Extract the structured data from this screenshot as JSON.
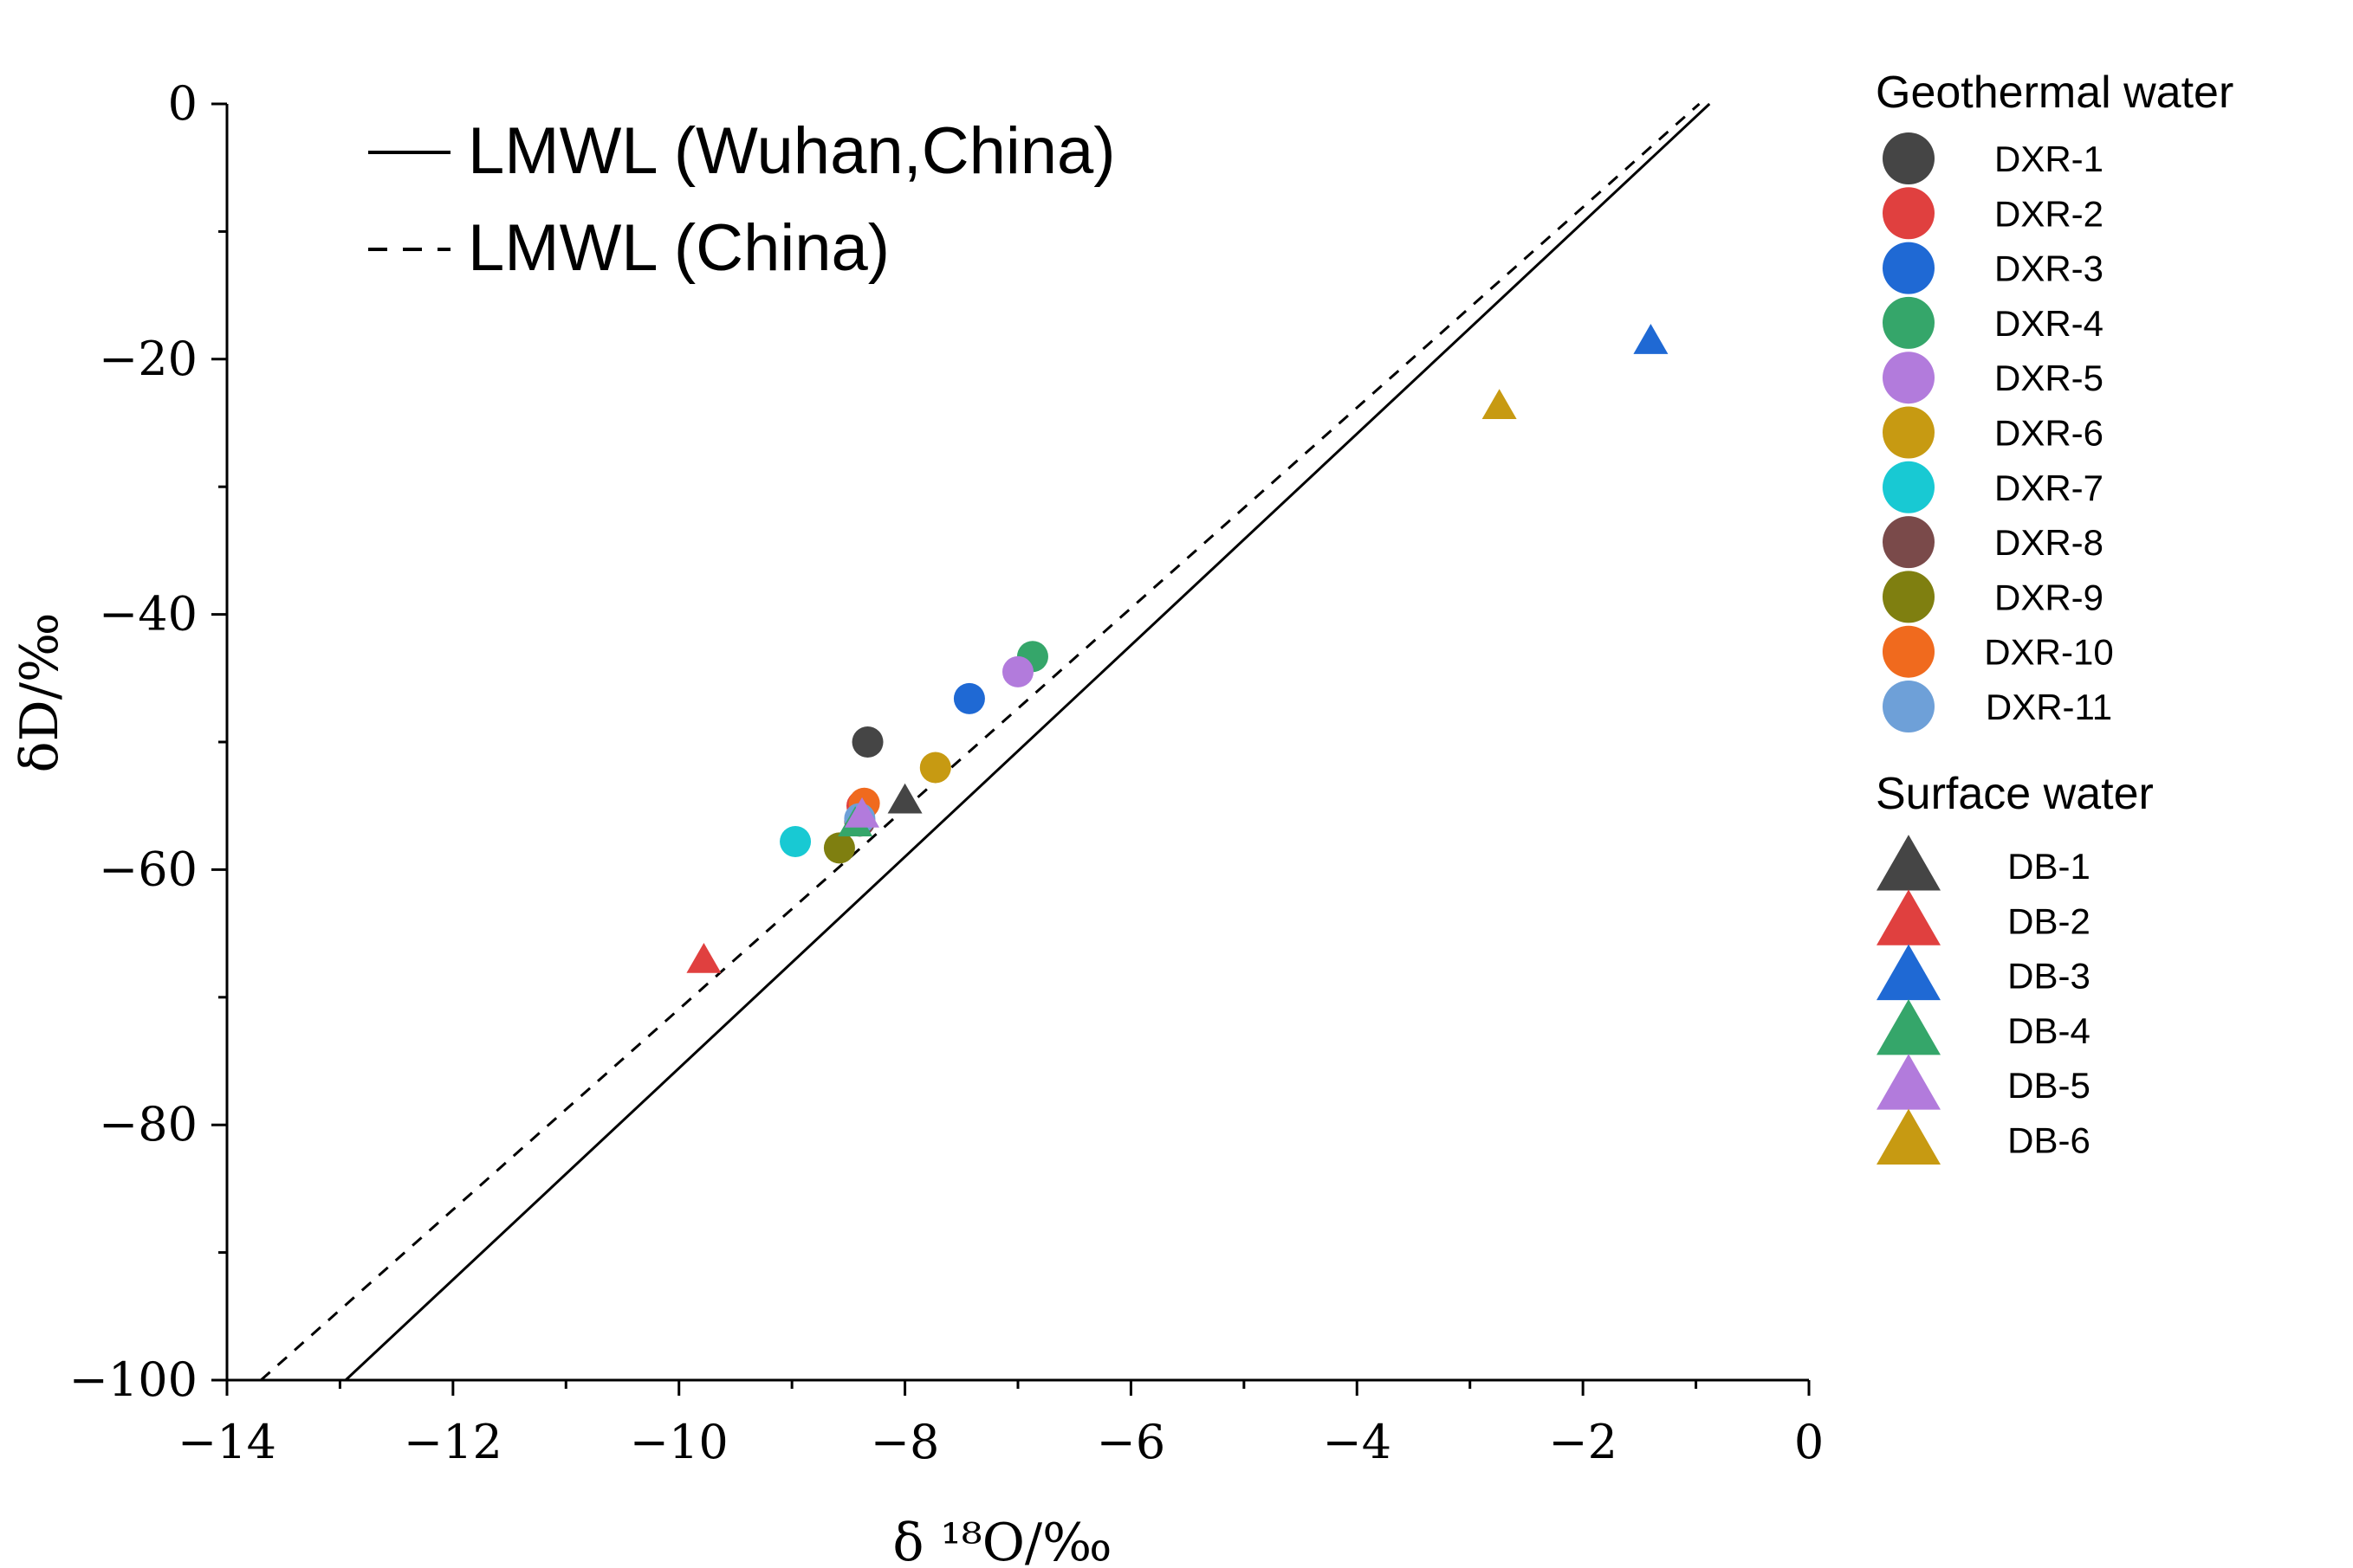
{
  "chart_data": {
    "type": "scatter",
    "xlabel": "δ ¹⁸O/‰",
    "ylabel": "δD/‰",
    "xlim": [
      -14,
      0
    ],
    "ylim": [
      -100,
      0
    ],
    "x_ticks": [
      -14,
      -12,
      -10,
      -8,
      -6,
      -4,
      -2,
      0
    ],
    "y_ticks": [
      0,
      -20,
      -40,
      -60,
      -80,
      -100
    ],
    "x_tick_labels": [
      "−14",
      "−12",
      "−10",
      "−8",
      "−6",
      "−4",
      "−2",
      "0"
    ],
    "y_tick_labels": [
      "0",
      "−20",
      "−40",
      "−60",
      "−80",
      "−100"
    ],
    "lines": [
      {
        "name": "LMWL (Wuhan,China)",
        "style": "solid",
        "x": [
          -12.95,
          -0.88
        ],
        "y": [
          -100,
          0
        ]
      },
      {
        "name": "LMWL (China)",
        "style": "dashed",
        "x": [
          -13.7,
          -0.97
        ],
        "y": [
          -100,
          0
        ]
      }
    ],
    "legend_groups": [
      {
        "title": "Geothermal water",
        "marker": "circle",
        "items": [
          {
            "name": "DXR-1",
            "color": "#454545",
            "x": -8.33,
            "y": -50.0
          },
          {
            "name": "DXR-2",
            "color": "#e0403f",
            "x": -8.38,
            "y": -55.0
          },
          {
            "name": "DXR-3",
            "color": "#1f69d4",
            "x": -7.43,
            "y": -46.6
          },
          {
            "name": "DXR-4",
            "color": "#35a66a",
            "x": -6.87,
            "y": -43.3
          },
          {
            "name": "DXR-5",
            "color": "#b27bdc",
            "x": -7.0,
            "y": -44.5
          },
          {
            "name": "DXR-6",
            "color": "#c79a12",
            "x": -7.73,
            "y": -52.0
          },
          {
            "name": "DXR-7",
            "color": "#18c9d3",
            "x": -8.97,
            "y": -57.8
          },
          {
            "name": "DXR-8",
            "color": "#7a4a4a",
            "x": -8.4,
            "y": -56.2
          },
          {
            "name": "DXR-9",
            "color": "#7f7f10",
            "x": -8.58,
            "y": -58.3
          },
          {
            "name": "DXR-10",
            "color": "#f06a1e",
            "x": -8.36,
            "y": -54.8
          },
          {
            "name": "DXR-11",
            "color": "#6ea0d8",
            "x": -8.4,
            "y": -56.0
          }
        ]
      },
      {
        "title": "Surface water",
        "marker": "triangle",
        "items": [
          {
            "name": "DB-1",
            "color": "#454545",
            "x": -8.0,
            "y": -54.7
          },
          {
            "name": "DB-2",
            "color": "#e0403f",
            "x": -9.78,
            "y": -67.2
          },
          {
            "name": "DB-3",
            "color": "#1f69d4",
            "x": -1.4,
            "y": -18.7
          },
          {
            "name": "DB-4",
            "color": "#35a66a",
            "x": -8.44,
            "y": -56.5
          },
          {
            "name": "DB-5",
            "color": "#b27bdc",
            "x": -8.38,
            "y": -55.8
          },
          {
            "name": "DB-6",
            "color": "#c79a12",
            "x": -2.74,
            "y": -23.8
          }
        ]
      }
    ]
  }
}
